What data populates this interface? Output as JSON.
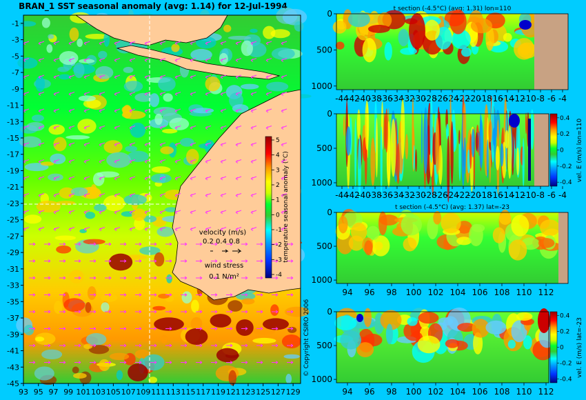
{
  "map": {
    "title": "BRAN_1  SST seasonal anomaly  (avg: 1.14)  for 12-Jul-1994",
    "y_ticks": [
      "-1",
      "-3",
      "-5",
      "-7",
      "-9",
      "-11",
      "-13",
      "-15",
      "-17",
      "-19",
      "-21",
      "-23",
      "-25",
      "-27",
      "-29",
      "-31",
      "-33",
      "-35",
      "-37",
      "-39",
      "-41",
      "-43",
      "-45"
    ],
    "x_ticks": [
      "93",
      "95",
      "97",
      "99",
      "101",
      "103",
      "105",
      "107",
      "109",
      "111",
      "113",
      "115",
      "117",
      "119",
      "121",
      "123",
      "125",
      "127",
      "129"
    ],
    "colorbar_ticks": [
      "5",
      "4",
      "3",
      "2",
      "1",
      "0",
      "-1",
      "-2",
      "-3",
      "-4"
    ],
    "colorbar_label": "temperature seasonal anomaly (°C)",
    "velocity_title": "velocity (m/s)",
    "velocity_values": "0.2 0.4 0.8",
    "wind_title": "wind stress",
    "wind_value": "0.1 N/m²",
    "copyright": "© Copyright CSIRO 2006"
  },
  "panels": [
    {
      "title": "t section (-4.5°C)  (avg: 1.31)  lon=110",
      "y_ticks": [
        "0",
        "500",
        "1000"
      ],
      "x_ticks": [
        "-44",
        "-42",
        "-40",
        "-38",
        "-36",
        "-34",
        "-32",
        "-30",
        "-28",
        "-26",
        "-24",
        "-22",
        "-20",
        "-18",
        "-16",
        "-14",
        "-12",
        "-10",
        "-8",
        "-6",
        "-4"
      ]
    },
    {
      "title": "",
      "y_ticks": [
        "0",
        "500",
        "1000"
      ],
      "x_ticks": [
        "-44",
        "-42",
        "-40",
        "-38",
        "-36",
        "-34",
        "-32",
        "-30",
        "-28",
        "-26",
        "-24",
        "-22",
        "-20",
        "-18",
        "-16",
        "-14",
        "-12",
        "-10",
        "-8",
        "-6",
        "-4"
      ],
      "colorbar_ticks": [
        "0.4",
        "0.2",
        "0",
        "-0.2",
        "-0.4"
      ],
      "colorbar_label": "vel. E (m/s) lon=110"
    },
    {
      "title": "t section (-4.5°C)  (avg: 1.37)  lat=-23",
      "y_ticks": [
        "0",
        "500",
        "1000"
      ],
      "x_ticks": [
        "94",
        "96",
        "98",
        "100",
        "102",
        "104",
        "106",
        "108",
        "110",
        "112"
      ]
    },
    {
      "title": "",
      "y_ticks": [
        "0",
        "500",
        "1000"
      ],
      "x_ticks": [
        "94",
        "96",
        "98",
        "100",
        "102",
        "104",
        "106",
        "108",
        "110",
        "112"
      ],
      "colorbar_ticks": [
        "0.4",
        "0.2",
        "0",
        "-0.2",
        "-0.4"
      ],
      "colorbar_label": "vel. E (m/s) lat=-23"
    }
  ],
  "chart_data": [
    {
      "type": "heatmap",
      "title": "BRAN_1  SST seasonal anomaly  (avg: 1.14)  for 12-Jul-1994",
      "xlabel": "",
      "ylabel": "",
      "xlim": [
        93,
        130
      ],
      "ylim": [
        -45,
        0
      ],
      "colorbar": {
        "label": "temperature seasonal anomaly (°C)",
        "range": [
          -4,
          5
        ]
      }
    },
    {
      "type": "heatmap",
      "title": "t section (-4.5°C)  (avg: 1.31)  lon=110",
      "xlim": [
        -45,
        -3
      ],
      "ylim": [
        1050,
        0
      ],
      "y_ticks": [
        0,
        500,
        1000
      ]
    },
    {
      "type": "heatmap",
      "title": "",
      "xlim": [
        -45,
        -3
      ],
      "ylim": [
        1050,
        0
      ],
      "colorbar": {
        "label": "vel. E (m/s) lon=110",
        "range": [
          -0.4,
          0.4
        ]
      }
    },
    {
      "type": "heatmap",
      "title": "t section (-4.5°C)  (avg: 1.37)  lat=-23",
      "xlim": [
        93,
        114
      ],
      "ylim": [
        1050,
        0
      ]
    },
    {
      "type": "heatmap",
      "title": "",
      "xlim": [
        93,
        114
      ],
      "ylim": [
        1050,
        0
      ],
      "colorbar": {
        "label": "vel. E (m/s) lat=-23",
        "range": [
          -0.4,
          0.4
        ]
      }
    }
  ],
  "colors": {
    "background": "#00ccff",
    "land": "#ffcc99",
    "section_land": "#c8a283",
    "vector": "#ff33ff",
    "colorbar_stops": [
      "#000080",
      "#0000ff",
      "#0099ff",
      "#00ffff",
      "#33cc33",
      "#00ff00",
      "#ccff00",
      "#ffff00",
      "#ff9900",
      "#ff0000",
      "#990000"
    ]
  }
}
